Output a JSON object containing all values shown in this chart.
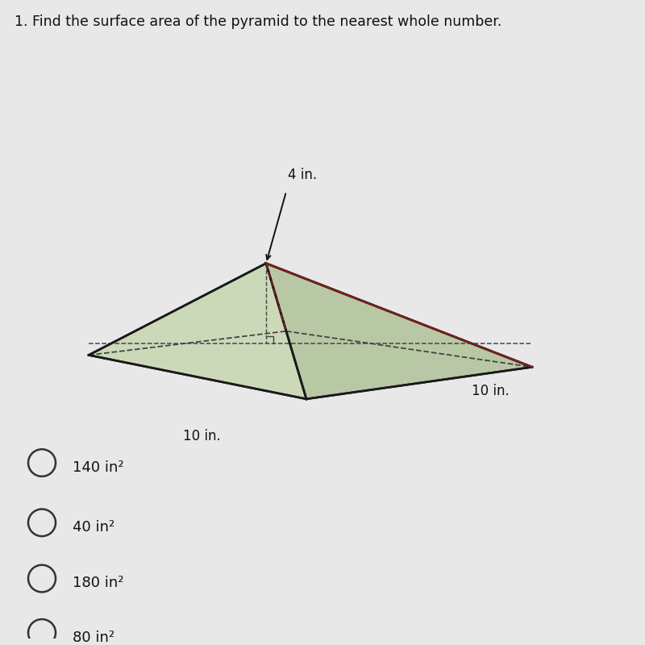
{
  "title": "1. Find the surface area of the pyramid to the nearest whole number.",
  "title_fontsize": 12.5,
  "bg_color": "#e8e8e8",
  "choices": [
    "140 in²",
    "40 in²",
    "180 in²",
    "80 in²"
  ],
  "dim_label_4in": "4 in.",
  "dim_label_10in_bottom": "10 in.",
  "dim_label_10in_right": "10 in.",
  "pyramid_fill_light": "#ccd9b8",
  "pyramid_fill_dark": "#b8c8a4",
  "pyramid_edge_color": "#1a1a1a",
  "pyramid_red_edge_color": "#7a2020",
  "dashed_color": "#444444",
  "text_color": "#111111",
  "circle_color": "#333333"
}
